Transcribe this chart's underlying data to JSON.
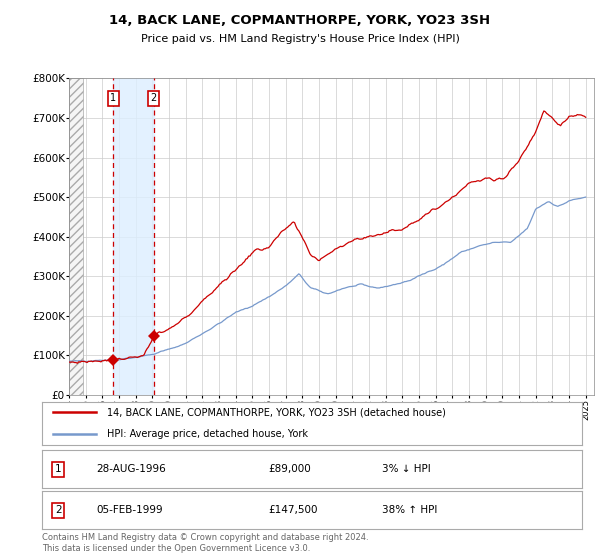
{
  "title": "14, BACK LANE, COPMANTHORPE, YORK, YO23 3SH",
  "subtitle": "Price paid vs. HM Land Registry's House Price Index (HPI)",
  "legend_line1": "14, BACK LANE, COPMANTHORPE, YORK, YO23 3SH (detached house)",
  "legend_line2": "HPI: Average price, detached house, York",
  "footer": "Contains HM Land Registry data © Crown copyright and database right 2024.\nThis data is licensed under the Open Government Licence v3.0.",
  "sale1_date": 1996.66,
  "sale1_price": 89000,
  "sale2_date": 1999.09,
  "sale2_price": 147500,
  "hpi_color": "#7799cc",
  "price_color": "#cc0000",
  "marker_color": "#cc0000",
  "background_color": "#ffffff",
  "plot_bg_color": "#ffffff",
  "grid_color": "#cccccc",
  "shade_color": "#ddeeff",
  "ylim_max": 800000,
  "xlim_start": 1994.0,
  "xlim_end": 2025.5,
  "hpi_key_x": [
    1994.0,
    1995.0,
    1996.0,
    1997.0,
    1998.0,
    1999.0,
    2000.0,
    2001.0,
    2002.0,
    2003.0,
    2004.0,
    2005.0,
    2006.0,
    2007.0,
    2007.8,
    2008.5,
    2009.5,
    2010.5,
    2011.5,
    2012.5,
    2013.5,
    2014.5,
    2015.5,
    2016.5,
    2017.5,
    2018.5,
    2019.5,
    2020.5,
    2021.5,
    2022.0,
    2022.8,
    2023.3,
    2024.0,
    2025.0
  ],
  "hpi_key_y": [
    84000,
    86000,
    88000,
    90000,
    95000,
    102000,
    115000,
    130000,
    155000,
    180000,
    208000,
    225000,
    248000,
    275000,
    305000,
    270000,
    255000,
    270000,
    278000,
    270000,
    278000,
    290000,
    310000,
    330000,
    360000,
    375000,
    385000,
    385000,
    420000,
    470000,
    490000,
    475000,
    490000,
    500000
  ],
  "prop_key_x": [
    1994.0,
    1995.0,
    1996.0,
    1996.66,
    1997.5,
    1998.5,
    1999.09,
    2000.0,
    2001.0,
    2002.0,
    2003.0,
    2004.0,
    2005.0,
    2006.0,
    2007.0,
    2007.5,
    2008.5,
    2009.0,
    2010.0,
    2011.0,
    2012.0,
    2013.0,
    2014.0,
    2015.0,
    2016.0,
    2017.0,
    2018.0,
    2019.0,
    2020.0,
    2021.0,
    2022.0,
    2022.5,
    2023.0,
    2023.5,
    2024.0,
    2024.5,
    2025.0
  ],
  "prop_key_y": [
    82000,
    84000,
    87000,
    89000,
    93000,
    100000,
    147500,
    165000,
    195000,
    235000,
    278000,
    315000,
    360000,
    375000,
    420000,
    435000,
    355000,
    340000,
    370000,
    390000,
    400000,
    410000,
    420000,
    445000,
    470000,
    500000,
    535000,
    545000,
    545000,
    592000,
    665000,
    720000,
    700000,
    680000,
    700000,
    710000,
    700000
  ]
}
